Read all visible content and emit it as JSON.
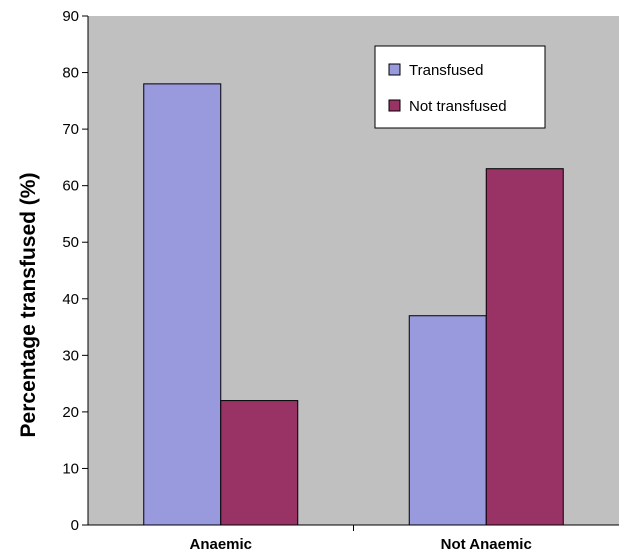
{
  "chart_data": {
    "type": "bar",
    "title": "",
    "xlabel": "",
    "ylabel": "Percentage transfused (%)",
    "categories": [
      "Anaemic",
      "Not Anaemic"
    ],
    "series": [
      {
        "name": "Transfused",
        "values": [
          78,
          37
        ],
        "color": "#9999DD"
      },
      {
        "name": "Not transfused",
        "values": [
          22,
          63
        ],
        "color": "#993366"
      }
    ],
    "ylim": [
      0,
      90
    ],
    "yticks": [
      0,
      10,
      20,
      30,
      40,
      50,
      60,
      70,
      80,
      90
    ],
    "plot_background": "#C0C0C0",
    "grid": false,
    "legend_position": "top-right"
  }
}
